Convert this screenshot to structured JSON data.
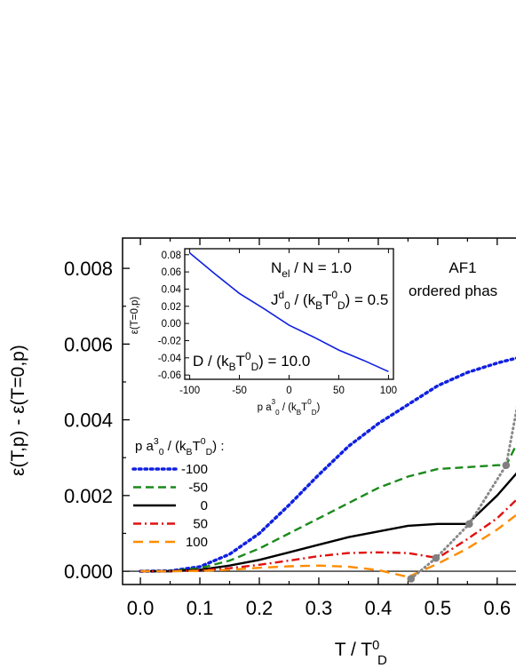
{
  "chart_data": {
    "type": "line",
    "main": {
      "xlim": [
        -0.03,
        0.66
      ],
      "ylim": [
        -0.00035,
        0.0088
      ],
      "xticks": [
        "0.0",
        "0.1",
        "0.2",
        "0.3",
        "0.4",
        "0.5",
        "0.6",
        "0"
      ],
      "yticks": [
        "0.000",
        "0.002",
        "0.004",
        "0.006",
        "0.008"
      ],
      "ylabel": "ε(T,p) - ε(T=0,p)",
      "xlabel_parts": {
        "base": "T / T",
        "sup": "0",
        "sub": "D"
      },
      "legend_title": {
        "prefix": "p a",
        "sup1": "3",
        "sub1": "0",
        "mid": " / (k",
        "sub2": "B",
        "mid2": "T",
        "sup3": "0",
        "sub3": "D",
        "suffix": ") :"
      },
      "series": [
        {
          "name": "-100",
          "color": "#1020e0",
          "dash": "dot",
          "x": [
            0.0,
            0.05,
            0.1,
            0.15,
            0.2,
            0.25,
            0.3,
            0.35,
            0.4,
            0.45,
            0.5,
            0.55,
            0.6,
            0.65
          ],
          "y": [
            0.0,
            1e-05,
            0.00012,
            0.00045,
            0.001,
            0.00175,
            0.00255,
            0.0033,
            0.0039,
            0.0044,
            0.0049,
            0.00525,
            0.0055,
            0.0057
          ]
        },
        {
          "name": "-50",
          "color": "#1a8a1a",
          "dash": "dash",
          "x": [
            0.0,
            0.05,
            0.1,
            0.15,
            0.2,
            0.25,
            0.3,
            0.35,
            0.4,
            0.45,
            0.5,
            0.55,
            0.6,
            0.615,
            0.65
          ],
          "y": [
            0.0,
            5e-06,
            8e-05,
            0.00028,
            0.0006,
            0.001,
            0.0014,
            0.0018,
            0.0022,
            0.0025,
            0.0027,
            0.00275,
            0.0028,
            0.0028,
            0.0039
          ]
        },
        {
          "name": "0",
          "color": "#000000",
          "dash": "solid",
          "x": [
            0.0,
            0.05,
            0.1,
            0.15,
            0.2,
            0.25,
            0.3,
            0.35,
            0.4,
            0.45,
            0.5,
            0.55,
            0.6,
            0.65
          ],
          "y": [
            0.0,
            2e-06,
            4e-05,
            0.00015,
            0.0003,
            0.0005,
            0.0007,
            0.0009,
            0.00105,
            0.0012,
            0.00125,
            0.00125,
            0.002,
            0.0029
          ]
        },
        {
          "name": "50",
          "color": "#e01010",
          "dash": "dashdot",
          "x": [
            0.0,
            0.05,
            0.1,
            0.15,
            0.2,
            0.25,
            0.3,
            0.35,
            0.4,
            0.45,
            0.5,
            0.55,
            0.6,
            0.65
          ],
          "y": [
            0.0,
            0.0,
            2e-05,
            8e-05,
            0.00017,
            0.00028,
            0.0004,
            0.00048,
            0.0005,
            0.00048,
            0.00035,
            0.00085,
            0.0014,
            0.00215
          ]
        },
        {
          "name": "100",
          "color": "#ff8c00",
          "dash": "longdash",
          "x": [
            0.0,
            0.05,
            0.1,
            0.15,
            0.2,
            0.25,
            0.3,
            0.35,
            0.4,
            0.45,
            0.5,
            0.55,
            0.6,
            0.65
          ],
          "y": [
            0.0,
            0.0,
            1e-05,
            4e-05,
            9e-05,
            0.00013,
            0.00015,
            0.00012,
            3e-05,
            -0.00015,
            0.0002,
            0.0006,
            0.0011,
            0.0017
          ]
        }
      ],
      "transition_points": {
        "x": [
          0.455,
          0.497,
          0.553,
          0.615,
          0.65
        ],
        "y": [
          -0.0002,
          0.00035,
          0.00125,
          0.0028,
          0.0057
        ]
      },
      "zero_line_y": 0.0
    },
    "inset": {
      "xlim": [
        -105,
        105
      ],
      "ylim": [
        -0.065,
        0.087
      ],
      "xticks": [
        "-100",
        "-50",
        "0",
        "50",
        "100"
      ],
      "yticks": [
        "0.08",
        "0.06",
        "0.04",
        "0.02",
        "0.00",
        "-0.02",
        "-0.04",
        "-0.06"
      ],
      "ylabel": "ε(T=0,p)",
      "xlabel_parts": {
        "a": "p a",
        "sup1": "3",
        "sub1": "0",
        "b": " / (k",
        "sub2": "B",
        "c": "T",
        "sup3": "0",
        "sub3": "D",
        "d": ")"
      },
      "x": [
        -100,
        -75,
        -50,
        -25,
        0,
        25,
        50,
        75,
        100
      ],
      "y": [
        0.082,
        0.058,
        0.035,
        0.017,
        -0.002,
        -0.016,
        -0.031,
        -0.043,
        -0.056
      ],
      "color": "#1020e0"
    },
    "annotations": {
      "nel": {
        "a": "N",
        "sub": "el",
        "b": " / N = 1.0"
      },
      "j": {
        "a": "J",
        "sup": "d",
        "sub": "0",
        "b": " / (k",
        "sub2": "B",
        "c": "T",
        "sup3": "0",
        "sub3": "D",
        "d": ") = 0.5"
      },
      "d": {
        "a": "D / (k",
        "sub": "B",
        "b": "T",
        "sup2": "0",
        "sub2": "D",
        "c": ") = 10.0"
      },
      "phase_line1": "AF1",
      "phase_line2": "ordered phas"
    }
  }
}
